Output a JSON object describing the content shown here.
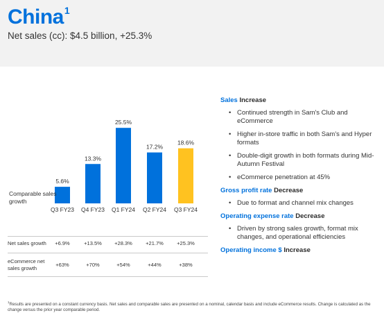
{
  "header": {
    "title": "China",
    "title_sup": "1",
    "subtitle": "Net sales (cc): $4.5 billion, +25.3%"
  },
  "chart_data": {
    "type": "bar",
    "categories": [
      "Q3 FY23",
      "Q4 FY23",
      "Q1 FY24",
      "Q2 FY24",
      "Q3 FY24"
    ],
    "values": [
      5.6,
      13.3,
      25.5,
      17.2,
      18.6
    ],
    "data_labels": [
      "5.6%",
      "13.3%",
      "25.5%",
      "17.2%",
      "18.6%"
    ],
    "series_label": "Comparable sales growth",
    "ylim": [
      0,
      30
    ],
    "colors": [
      "#0071dc",
      "#0071dc",
      "#0071dc",
      "#0071dc",
      "#ffc220"
    ]
  },
  "table": {
    "rows": [
      {
        "label": "Net sales growth",
        "values": [
          "+6.9%",
          "+13.5%",
          "+28.3%",
          "+21.7%",
          "+25.3%"
        ]
      },
      {
        "label": "eCommerce net sales growth",
        "values": [
          "+63%",
          "+70%",
          "+54%",
          "+44%",
          "+38%"
        ]
      }
    ]
  },
  "right": {
    "sections": [
      {
        "heading": "Sales",
        "status": "Increase",
        "bullets": [
          "Continued strength in Sam's Club and eCommerce",
          "Higher in-store traffic in both Sam's and Hyper formats",
          "Double-digit growth in both formats during Mid-Autumn Festival",
          "eCommerce penetration at 45%"
        ]
      },
      {
        "heading": "Gross profit rate",
        "status": "Decrease",
        "bullets": [
          "Due to format and channel mix changes"
        ]
      },
      {
        "heading": "Operating expense rate",
        "status": "Decrease",
        "bullets": [
          "Driven by strong sales growth, format mix changes, and operational efficiencies"
        ]
      },
      {
        "heading": "Operating income $",
        "status": "Increase",
        "bullets": []
      }
    ]
  },
  "footnote": {
    "sup": "1",
    "text": "Results are presented on a constant currency basis. Net sales and comparable sales are presented on a nominal, calendar basis and include eCommerce results. Change is calculated as the change versus the prior year comparable period."
  }
}
